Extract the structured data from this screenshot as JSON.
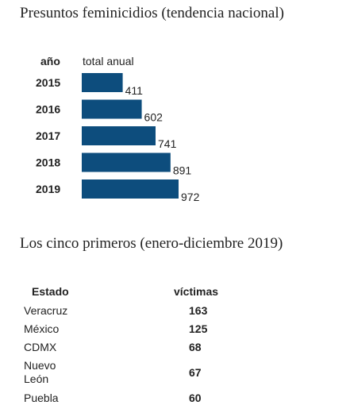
{
  "title1": "Presuntos feminicidios (tendencia nacional)",
  "title2": "Los cinco primeros (enero-diciembre 2019)",
  "chart_data": {
    "type": "bar",
    "orientation": "horizontal",
    "category_header": "año",
    "value_header": "total anual",
    "categories": [
      "2015",
      "2016",
      "2017",
      "2018",
      "2019"
    ],
    "values": [
      411,
      602,
      741,
      891,
      972
    ],
    "bar_color": "#0d4d7d",
    "xlim": [
      0,
      972
    ]
  },
  "table": {
    "headers": {
      "state": "Estado",
      "value": "víctimas"
    },
    "rows": [
      {
        "state": "Veracruz",
        "value": "163"
      },
      {
        "state": "México",
        "value": "125"
      },
      {
        "state": "CDMX",
        "value": "68"
      },
      {
        "state": "Nuevo León",
        "state_lines": [
          "Nuevo",
          "León"
        ],
        "value": "67"
      },
      {
        "state": "Puebla",
        "value": "60"
      }
    ]
  }
}
